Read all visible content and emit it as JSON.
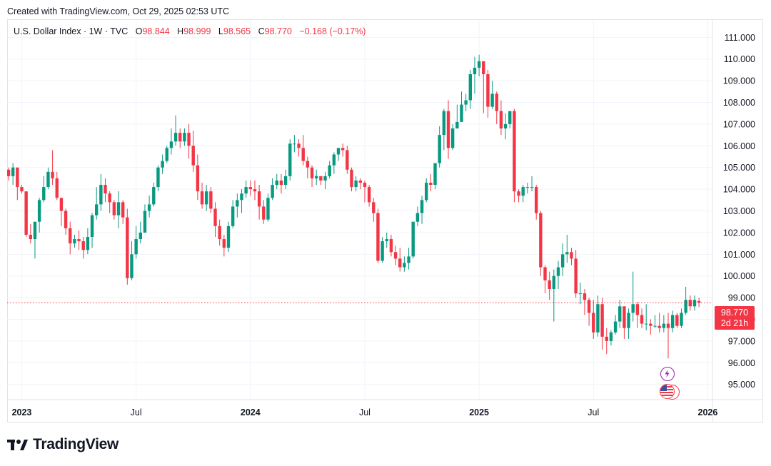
{
  "header": {
    "created_text": "Created with TradingView.com, Oct 29, 2025 02:53 UTC"
  },
  "legend": {
    "symbol": "U.S. Dollar Index · 1W · TVC",
    "o_label": "O",
    "o_value": "98.844",
    "h_label": "H",
    "h_value": "98.999",
    "l_label": "L",
    "l_value": "98.565",
    "c_label": "C",
    "c_value": "98.770",
    "change": "−0.168 (−0.17%)"
  },
  "price_tag": {
    "price": "98.770",
    "countdown": "2d 21h"
  },
  "logo": {
    "text": "TradingView"
  },
  "events": {
    "flash_icon": "lightning-icon",
    "flag_icon": "us-flag-icon"
  },
  "colors": {
    "up": "#089981",
    "down": "#f23645",
    "grid": "#f0f3fa",
    "axis_text": "#131722"
  },
  "chart_data": {
    "type": "candlestick",
    "title": "U.S. Dollar Index · 1W · TVC",
    "ylim": [
      94.3,
      111.8
    ],
    "y_ticks": [
      "95.000",
      "96.000",
      "97.000",
      "98.000",
      "99.000",
      "100.000",
      "101.000",
      "102.000",
      "103.000",
      "104.000",
      "105.000",
      "106.000",
      "107.000",
      "108.000",
      "109.000",
      "110.000",
      "111.000"
    ],
    "x_ticks": [
      {
        "label": "2023",
        "week": 3,
        "bold": true
      },
      {
        "label": "Jul",
        "week": 29,
        "bold": false
      },
      {
        "label": "2024",
        "week": 55,
        "bold": true
      },
      {
        "label": "Jul",
        "week": 81,
        "bold": false
      },
      {
        "label": "2025",
        "week": 107,
        "bold": true
      },
      {
        "label": "Jul",
        "week": 133,
        "bold": false
      },
      {
        "label": "2026",
        "week": 159,
        "bold": true
      }
    ],
    "last_price": 98.77,
    "first_week_start": "2022-12-12",
    "candles": [
      [
        104.9,
        104.6,
        105.0,
        104.4
      ],
      [
        104.6,
        105.0,
        105.2,
        104.2
      ],
      [
        105.0,
        104.1,
        105.0,
        103.5
      ],
      [
        104.1,
        103.9,
        104.2,
        103.8
      ],
      [
        103.9,
        101.9,
        103.9,
        101.8
      ],
      [
        101.9,
        101.7,
        102.4,
        101.5
      ],
      [
        101.7,
        102.5,
        102.5,
        100.8
      ],
      [
        102.5,
        103.5,
        103.6,
        102.0
      ],
      [
        103.5,
        104.1,
        104.6,
        103.4
      ],
      [
        104.1,
        104.8,
        105.0,
        104.0
      ],
      [
        104.8,
        104.5,
        105.8,
        104.2
      ],
      [
        104.5,
        103.6,
        104.8,
        103.5
      ],
      [
        103.6,
        103.0,
        103.6,
        102.3
      ],
      [
        103.0,
        102.2,
        103.1,
        101.9
      ],
      [
        102.2,
        101.5,
        102.5,
        101.0
      ],
      [
        101.5,
        101.7,
        101.9,
        101.3
      ],
      [
        101.7,
        101.6,
        102.1,
        101.2
      ],
      [
        101.6,
        101.2,
        101.8,
        100.8
      ],
      [
        101.2,
        101.8,
        102.2,
        101.0
      ],
      [
        101.8,
        102.8,
        102.9,
        101.3
      ],
      [
        102.8,
        103.3,
        104.1,
        102.6
      ],
      [
        103.3,
        104.2,
        104.7,
        103.0
      ],
      [
        104.2,
        103.8,
        104.5,
        103.4
      ],
      [
        103.8,
        103.4,
        103.9,
        102.9
      ],
      [
        103.4,
        102.8,
        103.5,
        102.6
      ],
      [
        102.8,
        103.4,
        103.9,
        102.2
      ],
      [
        103.4,
        102.7,
        103.5,
        102.4
      ],
      [
        102.7,
        99.9,
        103.1,
        99.6
      ],
      [
        99.9,
        101.0,
        101.6,
        99.8
      ],
      [
        101.0,
        101.7,
        102.3,
        100.8
      ],
      [
        101.7,
        102.0,
        102.5,
        101.5
      ],
      [
        102.0,
        103.0,
        103.3,
        102.0
      ],
      [
        103.0,
        103.3,
        103.7,
        102.7
      ],
      [
        103.3,
        104.1,
        104.3,
        103.2
      ],
      [
        104.1,
        105.0,
        105.1,
        103.9
      ],
      [
        105.0,
        105.3,
        105.6,
        104.7
      ],
      [
        105.3,
        105.9,
        106.0,
        105.2
      ],
      [
        105.9,
        106.2,
        106.8,
        105.6
      ],
      [
        106.2,
        106.6,
        107.4,
        106.0
      ],
      [
        106.6,
        106.2,
        106.8,
        105.9
      ],
      [
        106.2,
        106.6,
        106.8,
        106.0
      ],
      [
        106.6,
        106.0,
        107.0,
        105.4
      ],
      [
        106.0,
        105.1,
        106.7,
        104.8
      ],
      [
        105.1,
        103.9,
        105.6,
        103.5
      ],
      [
        103.9,
        103.3,
        104.3,
        103.1
      ],
      [
        103.3,
        103.9,
        104.2,
        103.0
      ],
      [
        103.9,
        103.1,
        104.1,
        102.9
      ],
      [
        103.1,
        102.3,
        103.4,
        101.8
      ],
      [
        102.3,
        101.7,
        102.6,
        101.4
      ],
      [
        101.7,
        101.3,
        101.9,
        100.9
      ],
      [
        101.3,
        102.3,
        102.5,
        101.1
      ],
      [
        102.3,
        103.2,
        103.5,
        102.2
      ],
      [
        103.2,
        103.5,
        103.8,
        102.7
      ],
      [
        103.5,
        103.8,
        104.0,
        102.9
      ],
      [
        103.8,
        104.1,
        104.4,
        103.6
      ],
      [
        104.1,
        104.0,
        104.4,
        103.7
      ],
      [
        104.0,
        103.9,
        104.4,
        103.5
      ],
      [
        103.9,
        103.2,
        104.2,
        102.6
      ],
      [
        103.2,
        102.6,
        103.5,
        102.4
      ],
      [
        102.6,
        103.6,
        103.8,
        102.5
      ],
      [
        103.6,
        104.2,
        104.5,
        103.5
      ],
      [
        104.2,
        104.4,
        104.7,
        104.0
      ],
      [
        104.4,
        104.2,
        104.7,
        103.8
      ],
      [
        104.2,
        104.6,
        104.9,
        104.0
      ],
      [
        104.6,
        106.1,
        106.3,
        104.4
      ],
      [
        106.1,
        106.1,
        106.5,
        105.7
      ],
      [
        106.1,
        105.9,
        106.3,
        105.5
      ],
      [
        105.9,
        105.3,
        106.5,
        105.1
      ],
      [
        105.3,
        105.0,
        105.5,
        104.5
      ],
      [
        105.0,
        104.5,
        105.1,
        104.1
      ],
      [
        104.5,
        104.6,
        104.9,
        104.2
      ],
      [
        104.6,
        104.4,
        104.6,
        104.2
      ],
      [
        104.4,
        104.6,
        104.8,
        104.0
      ],
      [
        104.6,
        105.1,
        105.3,
        104.5
      ],
      [
        105.1,
        105.6,
        105.7,
        104.7
      ],
      [
        105.6,
        105.9,
        105.9,
        105.3
      ],
      [
        105.9,
        105.8,
        106.1,
        105.5
      ],
      [
        105.8,
        104.9,
        106.0,
        104.7
      ],
      [
        104.9,
        104.1,
        105.0,
        103.9
      ],
      [
        104.1,
        104.4,
        104.6,
        103.9
      ],
      [
        104.4,
        104.3,
        104.5,
        104.0
      ],
      [
        104.3,
        104.1,
        104.4,
        103.4
      ],
      [
        104.1,
        103.4,
        104.2,
        103.2
      ],
      [
        103.4,
        102.9,
        103.6,
        102.5
      ],
      [
        102.9,
        100.7,
        103.1,
        100.6
      ],
      [
        100.7,
        101.6,
        101.8,
        100.6
      ],
      [
        101.6,
        101.7,
        102.0,
        101.3
      ],
      [
        101.7,
        101.1,
        101.9,
        100.9
      ],
      [
        101.1,
        100.8,
        101.4,
        100.5
      ],
      [
        100.8,
        100.4,
        101.3,
        100.2
      ],
      [
        100.4,
        100.6,
        100.9,
        100.2
      ],
      [
        100.6,
        100.9,
        101.3,
        100.3
      ],
      [
        100.9,
        102.5,
        102.5,
        100.8
      ],
      [
        102.5,
        102.9,
        103.2,
        102.3
      ],
      [
        102.9,
        103.5,
        103.7,
        102.4
      ],
      [
        103.5,
        104.3,
        104.5,
        103.4
      ],
      [
        104.3,
        104.2,
        104.7,
        103.9
      ],
      [
        104.2,
        105.2,
        105.2,
        104.0
      ],
      [
        105.2,
        106.5,
        106.9,
        105.0
      ],
      [
        106.5,
        107.6,
        107.7,
        105.8
      ],
      [
        107.6,
        105.9,
        108.1,
        105.4
      ],
      [
        105.9,
        106.8,
        107.0,
        105.8
      ],
      [
        106.8,
        107.1,
        107.9,
        106.8
      ],
      [
        107.1,
        107.9,
        108.5,
        107.1
      ],
      [
        107.9,
        108.1,
        108.4,
        107.6
      ],
      [
        108.1,
        109.3,
        109.5,
        107.7
      ],
      [
        109.3,
        109.6,
        110.1,
        108.4
      ],
      [
        109.6,
        109.9,
        110.2,
        109.2
      ],
      [
        109.9,
        109.3,
        109.9,
        107.5
      ],
      [
        109.3,
        107.8,
        109.5,
        107.3
      ],
      [
        107.8,
        108.4,
        109.0,
        107.7
      ],
      [
        108.4,
        107.6,
        108.5,
        107.0
      ],
      [
        107.6,
        106.8,
        108.1,
        106.5
      ],
      [
        106.8,
        107.0,
        107.5,
        106.3
      ],
      [
        107.0,
        107.6,
        107.6,
        106.8
      ],
      [
        107.6,
        103.9,
        107.7,
        103.4
      ],
      [
        103.9,
        103.7,
        104.0,
        103.4
      ],
      [
        103.7,
        104.1,
        104.2,
        103.4
      ],
      [
        104.1,
        104.1,
        104.3,
        103.8
      ],
      [
        104.1,
        104.1,
        104.6,
        103.9
      ],
      [
        104.1,
        102.9,
        104.2,
        102.6
      ],
      [
        102.9,
        100.4,
        103.0,
        100.0
      ],
      [
        100.4,
        99.8,
        100.5,
        99.2
      ],
      [
        99.8,
        99.4,
        100.2,
        98.9
      ],
      [
        99.4,
        100.0,
        100.3,
        97.9
      ],
      [
        100.0,
        100.4,
        100.7,
        99.4
      ],
      [
        100.4,
        101.0,
        101.5,
        100.0
      ],
      [
        101.0,
        101.1,
        101.9,
        100.6
      ],
      [
        101.1,
        100.8,
        101.3,
        100.5
      ],
      [
        100.8,
        99.2,
        101.2,
        99.0
      ],
      [
        99.2,
        99.2,
        99.7,
        98.7
      ],
      [
        99.2,
        98.9,
        99.4,
        98.2
      ],
      [
        98.9,
        98.3,
        99.0,
        97.7
      ],
      [
        98.3,
        97.4,
        98.9,
        97.1
      ],
      [
        97.4,
        98.7,
        99.1,
        97.2
      ],
      [
        98.7,
        97.2,
        99.0,
        96.6
      ],
      [
        97.2,
        97.0,
        97.6,
        96.4
      ],
      [
        97.0,
        97.4,
        97.5,
        96.8
      ],
      [
        97.4,
        97.9,
        98.2,
        97.3
      ],
      [
        97.9,
        98.6,
        98.9,
        97.6
      ],
      [
        98.6,
        97.6,
        98.6,
        97.1
      ],
      [
        97.6,
        98.3,
        98.5,
        97.1
      ],
      [
        98.3,
        98.7,
        100.2,
        97.9
      ],
      [
        98.7,
        98.2,
        98.8,
        97.6
      ],
      [
        98.2,
        97.8,
        98.5,
        97.6
      ],
      [
        97.8,
        97.8,
        98.7,
        97.5
      ],
      [
        97.8,
        97.7,
        98.0,
        97.3
      ],
      [
        97.7,
        97.7,
        98.2,
        97.6
      ],
      [
        97.7,
        97.6,
        98.3,
        97.4
      ],
      [
        97.6,
        97.8,
        98.2,
        97.4
      ],
      [
        97.8,
        97.6,
        98.3,
        96.2
      ],
      [
        97.6,
        98.2,
        98.4,
        97.4
      ],
      [
        98.2,
        97.7,
        98.3,
        97.6
      ],
      [
        97.7,
        98.3,
        98.5,
        97.6
      ],
      [
        98.3,
        98.9,
        99.5,
        98.2
      ],
      [
        98.9,
        98.6,
        99.1,
        98.4
      ],
      [
        98.6,
        98.9,
        99.1,
        98.4
      ],
      [
        98.844,
        98.77,
        98.999,
        98.565
      ]
    ]
  }
}
